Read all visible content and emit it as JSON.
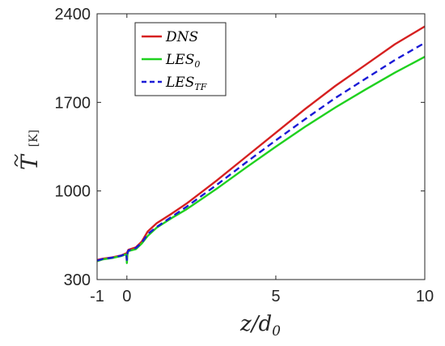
{
  "chart_data": {
    "type": "line",
    "xlabel": "z/d",
    "xlabel_sub": "0",
    "ylabel": "T",
    "ylabel_unit": "[K]",
    "xlim": [
      -1,
      10
    ],
    "ylim": [
      300,
      2400
    ],
    "xticks": [
      -1,
      0,
      5,
      10
    ],
    "xtick_labels": [
      "-1",
      "0",
      "5",
      "10"
    ],
    "yticks": [
      300,
      1000,
      1700,
      2400
    ],
    "ytick_labels": [
      "300",
      "1000",
      "1700",
      "2400"
    ],
    "grid": false,
    "legend_position": "top-left",
    "series": [
      {
        "name": "DNS",
        "legend_main": "DNS",
        "legend_sub": "",
        "color": "#d62020",
        "dash": "solid",
        "x": [
          -1,
          -0.8,
          -0.5,
          -0.2,
          0,
          0.05,
          0.3,
          0.5,
          0.7,
          1,
          1.5,
          2,
          3,
          4,
          5,
          6,
          7,
          8,
          9,
          10
        ],
        "y": [
          455,
          465,
          475,
          490,
          510,
          535,
          555,
          600,
          680,
          745,
          820,
          900,
          1080,
          1270,
          1460,
          1650,
          1830,
          1995,
          2160,
          2300
        ]
      },
      {
        "name": "LES0",
        "legend_main": "LES",
        "legend_sub": "0",
        "color": "#1fd11f",
        "dash": "solid",
        "x": [
          -1,
          -0.8,
          -0.5,
          -0.2,
          -0.02,
          0,
          0.02,
          0.05,
          0.3,
          0.5,
          0.7,
          1,
          1.5,
          2,
          3,
          4,
          5,
          6,
          7,
          8,
          9,
          10
        ],
        "y": [
          445,
          460,
          470,
          485,
          500,
          430,
          505,
          525,
          540,
          585,
          645,
          710,
          785,
          855,
          1015,
          1185,
          1350,
          1510,
          1660,
          1800,
          1935,
          2060
        ]
      },
      {
        "name": "LESTF",
        "legend_main": "LES",
        "legend_sub": "TF",
        "color": "#1a1ad6",
        "dash": "8,5",
        "x": [
          -1,
          -0.8,
          -0.5,
          -0.2,
          -0.02,
          0,
          0.02,
          0.05,
          0.3,
          0.5,
          0.7,
          1,
          1.5,
          2,
          3,
          4,
          5,
          6,
          7,
          8,
          9,
          10
        ],
        "y": [
          450,
          463,
          473,
          488,
          505,
          455,
          512,
          530,
          550,
          590,
          660,
          715,
          795,
          875,
          1045,
          1225,
          1400,
          1570,
          1735,
          1885,
          2035,
          2170
        ]
      }
    ]
  }
}
